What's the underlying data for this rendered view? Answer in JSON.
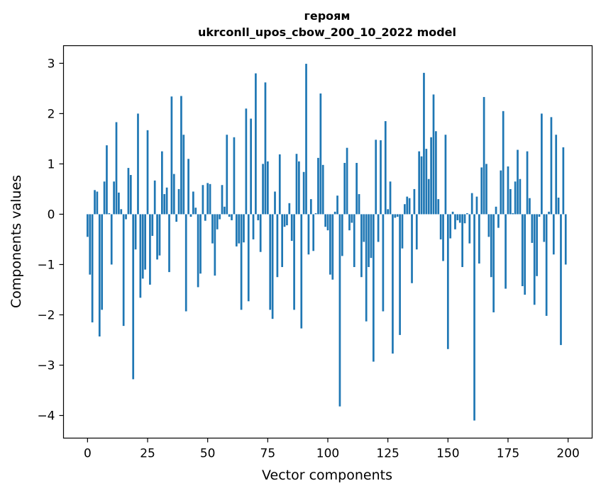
{
  "chart_data": {
    "type": "bar",
    "title": "героям",
    "subtitle": "ukrconll_upos_cbow_200_10_2022 model",
    "xlabel": "Vector components",
    "ylabel": "Components values",
    "xlim": [
      -10,
      210
    ],
    "ylim": [
      -4.45,
      3.35
    ],
    "xticks": [
      0,
      25,
      50,
      75,
      100,
      125,
      150,
      175,
      200
    ],
    "yticks": [
      3,
      2,
      1,
      0,
      -1,
      -2,
      -3,
      -4
    ],
    "ytick_labels": [
      "3",
      "2",
      "1",
      "0",
      "−1",
      "−2",
      "−3",
      "−4"
    ],
    "bar_color": "#1f77b4",
    "grid": false,
    "values": [
      -0.45,
      -1.2,
      -2.15,
      0.48,
      0.45,
      -2.43,
      -1.9,
      0.65,
      1.37,
      0.02,
      -1.0,
      0.65,
      1.83,
      0.43,
      0.1,
      -2.22,
      -0.1,
      0.92,
      0.78,
      -3.28,
      -0.7,
      2.0,
      -1.66,
      -1.28,
      -1.1,
      1.67,
      -1.4,
      -0.43,
      0.67,
      -0.9,
      -0.82,
      1.25,
      0.4,
      0.53,
      -1.15,
      2.34,
      0.8,
      -0.15,
      0.5,
      2.35,
      1.58,
      -1.93,
      1.1,
      -0.05,
      0.45,
      0.13,
      -1.45,
      -1.18,
      0.58,
      -0.13,
      0.62,
      0.6,
      -0.58,
      -1.22,
      -0.3,
      -0.1,
      0.58,
      0.15,
      1.58,
      -0.05,
      -0.12,
      1.53,
      -0.64,
      -0.58,
      -1.9,
      -0.56,
      2.1,
      -1.73,
      1.9,
      -0.5,
      2.8,
      -0.12,
      -0.75,
      1.0,
      2.62,
      1.05,
      -1.9,
      -2.08,
      0.45,
      -1.25,
      1.19,
      -1.05,
      -0.25,
      -0.22,
      0.22,
      -0.53,
      -1.9,
      1.2,
      1.05,
      -2.27,
      0.84,
      2.99,
      -0.8,
      0.3,
      -0.73,
      0.02,
      1.12,
      2.4,
      0.98,
      -0.25,
      -0.32,
      -1.2,
      -1.3,
      0.05,
      0.37,
      -3.82,
      -0.83,
      1.02,
      1.32,
      -0.32,
      -0.17,
      -1.05,
      1.02,
      0.4,
      -1.25,
      -0.55,
      -2.13,
      -1.05,
      -0.87,
      -2.93,
      1.48,
      -0.55,
      1.47,
      -1.93,
      1.85,
      0.1,
      0.65,
      -2.77,
      -0.07,
      -0.05,
      -2.4,
      -0.68,
      0.2,
      0.35,
      0.32,
      -1.37,
      0.5,
      -0.7,
      1.25,
      1.15,
      2.81,
      1.3,
      0.7,
      1.53,
      2.38,
      1.65,
      0.3,
      -0.5,
      -0.93,
      1.58,
      -2.68,
      -0.48,
      0.05,
      -0.3,
      -0.12,
      -0.17,
      -1.05,
      -0.18,
      0.02,
      -0.58,
      0.42,
      -4.1,
      0.35,
      -0.98,
      0.93,
      2.33,
      1.0,
      -0.45,
      -1.25,
      -1.95,
      0.15,
      -0.27,
      0.87,
      2.05,
      -1.48,
      0.95,
      0.5,
      0.02,
      0.65,
      1.28,
      0.7,
      -1.43,
      -1.6,
      1.25,
      0.32,
      -0.57,
      -1.8,
      -1.23,
      -0.05,
      2.0,
      -0.55,
      -2.02,
      0.05,
      1.93,
      -0.8,
      1.58,
      0.33,
      -2.6,
      1.33,
      -1.0
    ]
  }
}
